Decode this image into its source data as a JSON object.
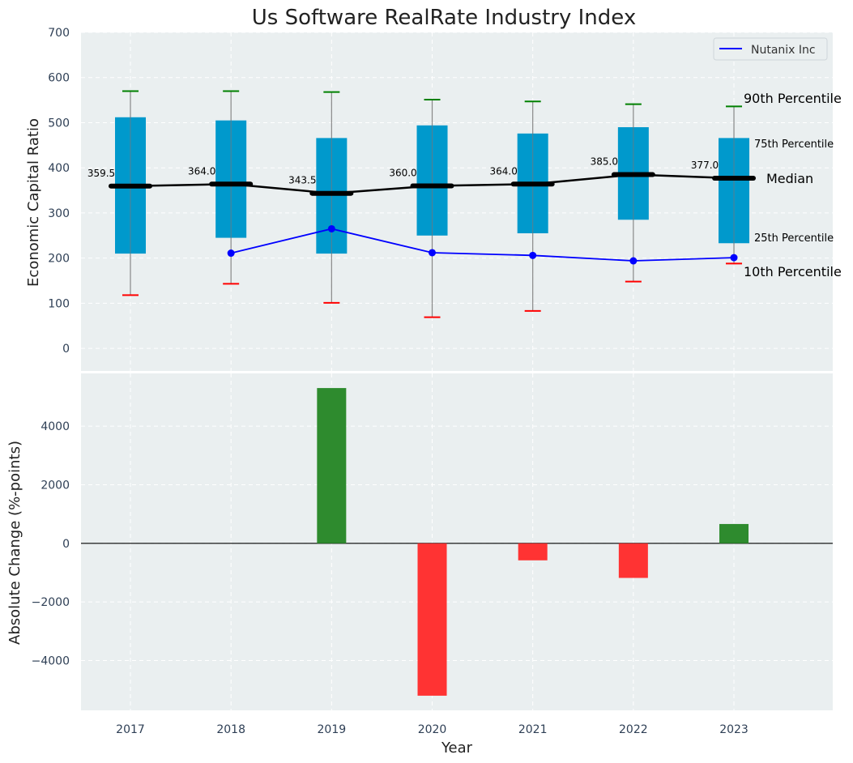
{
  "chart_data": {
    "type": "box+line+bar",
    "title": "Us Software RealRate Industry Index",
    "xlabel": "Year",
    "years": [
      "2017",
      "2018",
      "2019",
      "2020",
      "2021",
      "2022",
      "2023"
    ],
    "top": {
      "ylabel": "Economic Capital Ratio",
      "ylim": [
        -50,
        700
      ],
      "yticks": [
        "0",
        "100",
        "200",
        "300",
        "400",
        "500",
        "600",
        "700"
      ],
      "p10": [
        118,
        143,
        101,
        69,
        83,
        148,
        188
      ],
      "p25": [
        210,
        245,
        210,
        250,
        255,
        285,
        233
      ],
      "median": [
        359.5,
        364.0,
        343.5,
        360.0,
        364.0,
        385.0,
        377.0
      ],
      "median_labels": [
        "359.5",
        "364.0",
        "343.5",
        "360.0",
        "364.0",
        "385.0",
        "377.0"
      ],
      "p75": [
        512,
        505,
        466,
        494,
        476,
        490,
        466
      ],
      "p90": [
        570,
        570,
        568,
        551,
        547,
        541,
        536
      ],
      "company": {
        "name": "Nutanix Inc",
        "values": [
          null,
          211,
          265,
          212,
          206,
          194,
          201
        ]
      },
      "annotations": {
        "p90": "90th Percentile",
        "p75": "75th Percentile",
        "median": "Median",
        "p25": "25th Percentile",
        "p10": "10th Percentile"
      },
      "legend": "top-right"
    },
    "bottom": {
      "ylabel": "Absolute Change (%-points)",
      "ylim": [
        -5700,
        5800
      ],
      "yticks": [
        "−4000",
        "−2000",
        "0",
        "2000",
        "4000"
      ],
      "values": [
        null,
        null,
        5300,
        -5200,
        -580,
        -1180,
        660
      ]
    },
    "colors": {
      "box": "#0099cc",
      "median": "#000000",
      "company": "#0000ff",
      "p90": "#008000",
      "p10": "#ff0000",
      "positive": "#2e8b2e",
      "negative": "#ff3333",
      "panel": "#eaeff0",
      "annotation_small": "#0099cc"
    }
  }
}
